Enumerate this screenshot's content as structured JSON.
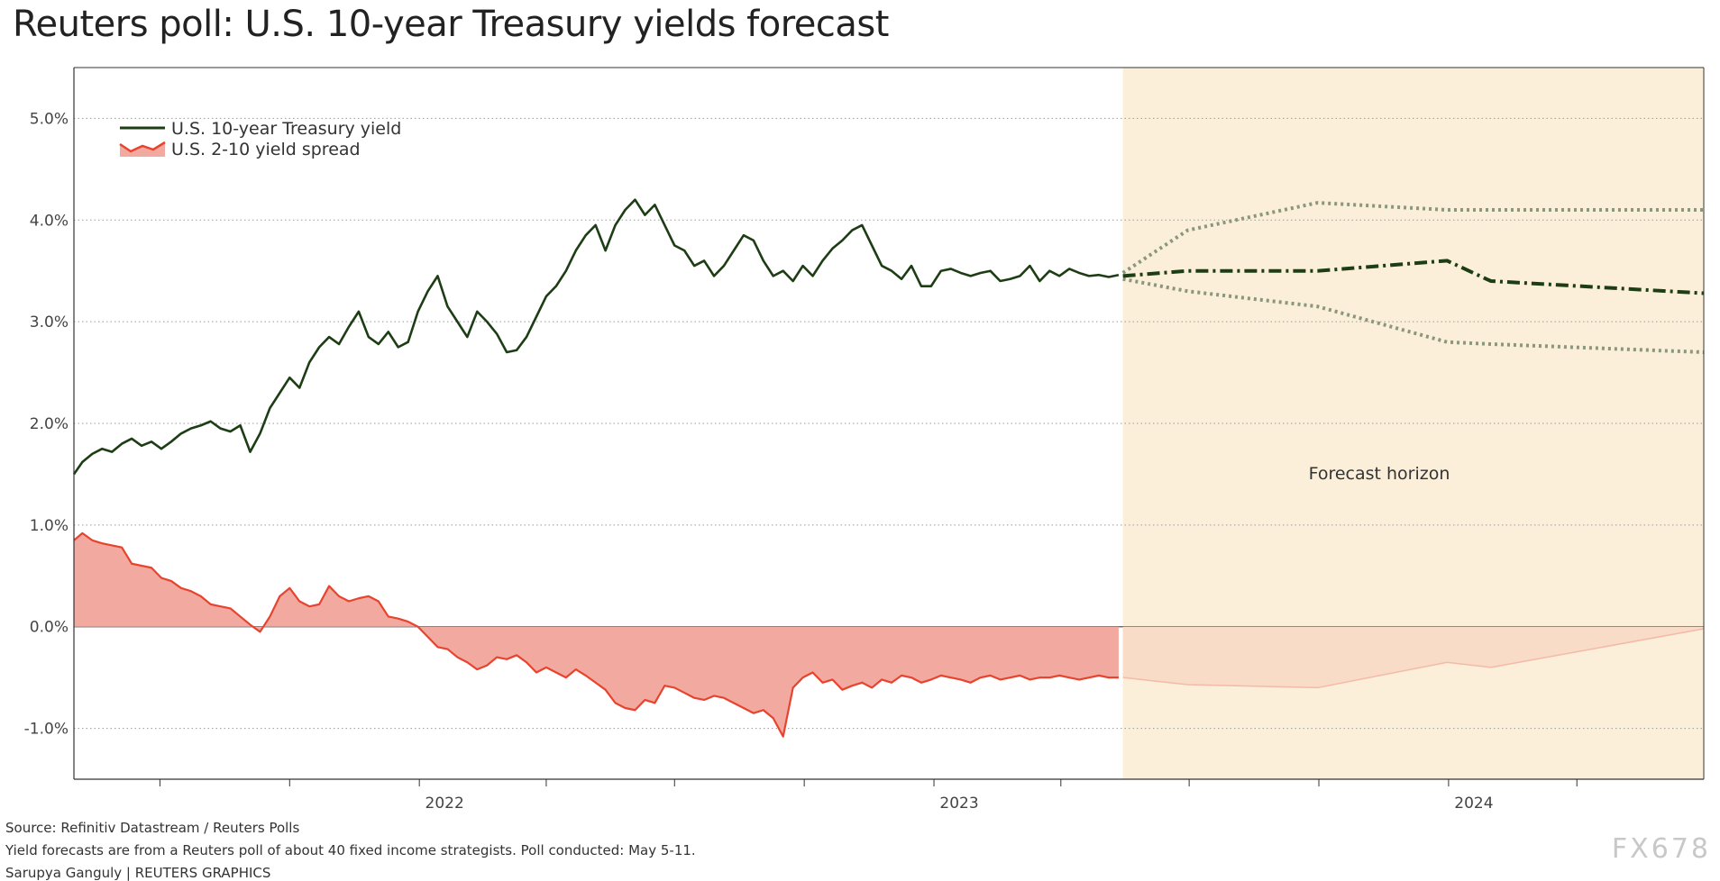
{
  "title": "Reuters poll: U.S. 10-year Treasury yields forecast",
  "footer": {
    "source": "Source: Refinitiv Datastream / Reuters Polls",
    "note": "Yield forecasts are from a Reuters poll of about 40 fixed income strategists. Poll conducted: May 5-11.",
    "credit": "Sarupya Ganguly | REUTERS GRAPHICS"
  },
  "watermark": "FX678",
  "chart_data": {
    "type": "line",
    "title": "Reuters poll: U.S. 10-year Treasury yields forecast",
    "xlabel": "",
    "ylabel": "",
    "ylim": [
      -1.5,
      5.5
    ],
    "xlim": [
      "2021-05-01",
      "2024-06-30"
    ],
    "x_tick_labels": [
      {
        "label": "2022",
        "date": "2022-01-01"
      },
      {
        "label": "2023",
        "date": "2023-01-01"
      },
      {
        "label": "2024",
        "date": "2024-01-01"
      }
    ],
    "y_ticks": [
      5.0,
      4.0,
      3.0,
      2.0,
      1.0,
      0.0,
      -1.0
    ],
    "y_tick_labels": [
      "5.0%",
      "4.0%",
      "3.0%",
      "2.0%",
      "1.0%",
      "0.0%",
      "-1.0%"
    ],
    "grid": true,
    "legend_position": "top-left",
    "annotation": "Forecast horizon",
    "forecast_start": "2023-05-15",
    "colors": {
      "yield": "#1d3d14",
      "band": "#8a977c",
      "spread_line": "#e8432f",
      "spread_fill": "#f2aaa0",
      "forecast_bg": "#fcefd9",
      "forecast_spread_fill": "#f9dcc8",
      "forecast_spread_line": "#f4b9a8"
    },
    "series": [
      {
        "name": "U.S. 10-year Treasury yield",
        "x": [
          "2021-05-01",
          "2021-05-07",
          "2021-05-14",
          "2021-05-21",
          "2021-05-28",
          "2021-06-04",
          "2021-06-11",
          "2021-06-18",
          "2021-06-25",
          "2021-07-02",
          "2021-07-09",
          "2021-07-16",
          "2021-07-23",
          "2021-07-30",
          "2021-08-06",
          "2021-08-13",
          "2021-08-20",
          "2021-08-27",
          "2021-09-03",
          "2021-09-10",
          "2021-09-17",
          "2021-09-24",
          "2021-10-01",
          "2021-10-08",
          "2021-10-15",
          "2021-10-22",
          "2021-10-29",
          "2021-11-05",
          "2021-11-12",
          "2021-11-19",
          "2021-11-26",
          "2021-12-03",
          "2021-12-10",
          "2021-12-17",
          "2021-12-24",
          "2021-12-31",
          "2022-01-07",
          "2022-01-14",
          "2022-01-21",
          "2022-01-28",
          "2022-02-04",
          "2022-02-11",
          "2022-02-18",
          "2022-02-25",
          "2022-03-04",
          "2022-03-11",
          "2022-03-18",
          "2022-03-25",
          "2022-04-01",
          "2022-04-08",
          "2022-04-15",
          "2022-04-22",
          "2022-04-29",
          "2022-05-06",
          "2022-05-13",
          "2022-05-20",
          "2022-05-27",
          "2022-06-03",
          "2022-06-10",
          "2022-06-17",
          "2022-06-24",
          "2022-07-01",
          "2022-07-08",
          "2022-07-15",
          "2022-07-22",
          "2022-07-29",
          "2022-08-05",
          "2022-08-12",
          "2022-08-19",
          "2022-08-26",
          "2022-09-02",
          "2022-09-09",
          "2022-09-16",
          "2022-09-23",
          "2022-09-30",
          "2022-10-07",
          "2022-10-14",
          "2022-10-21",
          "2022-10-28",
          "2022-11-04",
          "2022-11-11",
          "2022-11-18",
          "2022-11-25",
          "2022-12-02",
          "2022-12-09",
          "2022-12-16",
          "2022-12-23",
          "2022-12-30",
          "2023-01-06",
          "2023-01-13",
          "2023-01-20",
          "2023-01-27",
          "2023-02-03",
          "2023-02-10",
          "2023-02-17",
          "2023-02-24",
          "2023-03-03",
          "2023-03-10",
          "2023-03-17",
          "2023-03-24",
          "2023-03-31",
          "2023-04-07",
          "2023-04-14",
          "2023-04-21",
          "2023-04-28",
          "2023-05-05",
          "2023-05-12"
        ],
        "y": [
          1.5,
          1.62,
          1.7,
          1.75,
          1.72,
          1.8,
          1.85,
          1.78,
          1.82,
          1.75,
          1.82,
          1.9,
          1.95,
          1.98,
          2.02,
          1.95,
          1.92,
          1.98,
          1.72,
          1.9,
          2.15,
          2.3,
          2.45,
          2.35,
          2.6,
          2.75,
          2.85,
          2.78,
          2.95,
          3.1,
          2.85,
          2.78,
          2.9,
          2.75,
          2.8,
          3.1,
          3.3,
          3.45,
          3.15,
          3.0,
          2.85,
          3.1,
          3.0,
          2.88,
          2.7,
          2.72,
          2.85,
          3.05,
          3.25,
          3.35,
          3.5,
          3.7,
          3.85,
          3.95,
          3.7,
          3.95,
          4.1,
          4.2,
          4.05,
          4.15,
          3.95,
          3.75,
          3.7,
          3.55,
          3.6,
          3.45,
          3.55,
          3.7,
          3.85,
          3.8,
          3.6,
          3.45,
          3.5,
          3.4,
          3.55,
          3.45,
          3.6,
          3.72,
          3.8,
          3.9,
          3.95,
          3.75,
          3.55,
          3.5,
          3.42,
          3.55,
          3.35,
          3.35,
          3.5,
          3.52,
          3.48,
          3.45,
          3.48,
          3.5,
          3.4,
          3.42,
          3.45,
          3.55,
          3.4,
          3.5,
          3.45,
          3.52,
          3.48,
          3.45,
          3.46,
          3.44,
          3.46
        ]
      },
      {
        "name": "U.S. 2-10 yield spread",
        "x": [
          "2021-05-01",
          "2021-05-07",
          "2021-05-14",
          "2021-05-21",
          "2021-05-28",
          "2021-06-04",
          "2021-06-11",
          "2021-06-18",
          "2021-06-25",
          "2021-07-02",
          "2021-07-09",
          "2021-07-16",
          "2021-07-23",
          "2021-07-30",
          "2021-08-06",
          "2021-08-13",
          "2021-08-20",
          "2021-08-27",
          "2021-09-03",
          "2021-09-10",
          "2021-09-17",
          "2021-09-24",
          "2021-10-01",
          "2021-10-08",
          "2021-10-15",
          "2021-10-22",
          "2021-10-29",
          "2021-11-05",
          "2021-11-12",
          "2021-11-19",
          "2021-11-26",
          "2021-12-03",
          "2021-12-10",
          "2021-12-17",
          "2021-12-24",
          "2021-12-31",
          "2022-01-07",
          "2022-01-14",
          "2022-01-21",
          "2022-01-28",
          "2022-02-04",
          "2022-02-11",
          "2022-02-18",
          "2022-02-25",
          "2022-03-04",
          "2022-03-11",
          "2022-03-18",
          "2022-03-25",
          "2022-04-01",
          "2022-04-08",
          "2022-04-15",
          "2022-04-22",
          "2022-04-29",
          "2022-05-06",
          "2022-05-13",
          "2022-05-20",
          "2022-05-27",
          "2022-06-03",
          "2022-06-10",
          "2022-06-17",
          "2022-06-24",
          "2022-07-01",
          "2022-07-08",
          "2022-07-15",
          "2022-07-22",
          "2022-07-29",
          "2022-08-05",
          "2022-08-12",
          "2022-08-19",
          "2022-08-26",
          "2022-09-02",
          "2022-09-09",
          "2022-09-16",
          "2022-09-23",
          "2022-09-30",
          "2022-10-07",
          "2022-10-14",
          "2022-10-21",
          "2022-10-28",
          "2022-11-04",
          "2022-11-11",
          "2022-11-18",
          "2022-11-25",
          "2022-12-02",
          "2022-12-09",
          "2022-12-16",
          "2022-12-23",
          "2022-12-30",
          "2023-01-06",
          "2023-01-13",
          "2023-01-20",
          "2023-01-27",
          "2023-02-03",
          "2023-02-10",
          "2023-02-17",
          "2023-02-24",
          "2023-03-03",
          "2023-03-10",
          "2023-03-17",
          "2023-03-24",
          "2023-03-31",
          "2023-04-07",
          "2023-04-14",
          "2023-04-21",
          "2023-04-28",
          "2023-05-05",
          "2023-05-12"
        ],
        "y": [
          0.85,
          0.92,
          0.85,
          0.82,
          0.8,
          0.78,
          0.62,
          0.6,
          0.58,
          0.48,
          0.45,
          0.38,
          0.35,
          0.3,
          0.22,
          0.2,
          0.18,
          0.1,
          0.02,
          -0.05,
          0.1,
          0.3,
          0.38,
          0.25,
          0.2,
          0.22,
          0.4,
          0.3,
          0.25,
          0.28,
          0.3,
          0.25,
          0.1,
          0.08,
          0.05,
          0.0,
          -0.1,
          -0.2,
          -0.22,
          -0.3,
          -0.35,
          -0.42,
          -0.38,
          -0.3,
          -0.32,
          -0.28,
          -0.35,
          -0.45,
          -0.4,
          -0.45,
          -0.5,
          -0.42,
          -0.48,
          -0.55,
          -0.62,
          -0.75,
          -0.8,
          -0.82,
          -0.72,
          -0.75,
          -0.58,
          -0.6,
          -0.65,
          -0.7,
          -0.72,
          -0.68,
          -0.7,
          -0.75,
          -0.8,
          -0.85,
          -0.82,
          -0.9,
          -1.08,
          -0.6,
          -0.5,
          -0.45,
          -0.55,
          -0.52,
          -0.62,
          -0.58,
          -0.55,
          -0.6,
          -0.52,
          -0.55,
          -0.48,
          -0.5,
          -0.55,
          -0.52,
          -0.48,
          -0.5,
          -0.52,
          -0.55,
          -0.5,
          -0.48,
          -0.52,
          -0.5,
          -0.48,
          -0.52,
          -0.5,
          -0.5,
          -0.48,
          -0.5,
          -0.52,
          -0.5,
          -0.48,
          -0.5,
          -0.5
        ]
      },
      {
        "name": "",
        "x": [
          "2023-05-15",
          "2023-06-30",
          "2023-09-30",
          "2023-12-31",
          "2024-01-31",
          "2024-06-30"
        ],
        "y": [
          3.45,
          3.5,
          3.5,
          3.6,
          3.4,
          3.28
        ]
      },
      {
        "name": "",
        "x": [
          "2023-05-15",
          "2023-06-30",
          "2023-09-30",
          "2023-12-31",
          "2024-01-31",
          "2024-06-30"
        ],
        "y": [
          3.48,
          3.9,
          4.17,
          4.1,
          4.1,
          4.1
        ]
      },
      {
        "name": "",
        "x": [
          "2023-05-15",
          "2023-06-30",
          "2023-09-30",
          "2023-12-31",
          "2024-01-31",
          "2024-06-30"
        ],
        "y": [
          3.42,
          3.3,
          3.15,
          2.8,
          2.78,
          2.7
        ]
      },
      {
        "name": "",
        "x": [
          "2023-05-15",
          "2023-06-30",
          "2023-09-30",
          "2023-12-31",
          "2024-01-31",
          "2024-06-30"
        ],
        "y": [
          -0.5,
          -0.57,
          -0.6,
          -0.35,
          -0.4,
          -0.02
        ]
      }
    ]
  }
}
